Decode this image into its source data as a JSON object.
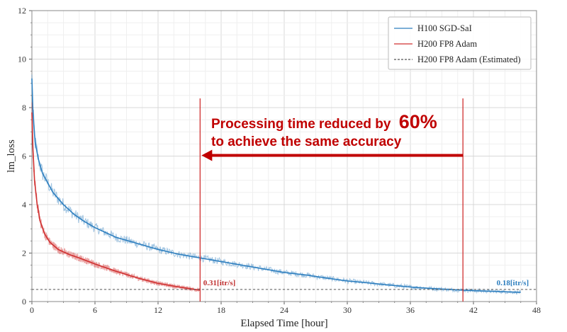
{
  "chart_data": {
    "type": "line",
    "title": "",
    "xlabel": "Elapsed Time [hour]",
    "ylabel": "lm_loss",
    "xlim": [
      0,
      48
    ],
    "ylim": [
      0,
      12
    ],
    "xticks": [
      0,
      6,
      12,
      18,
      24,
      30,
      36,
      42,
      48
    ],
    "yticks": [
      0,
      2,
      4,
      6,
      8,
      10,
      12
    ],
    "grid": true,
    "legend_position": "top-right",
    "series": [
      {
        "name": "H100 SGD-SaI",
        "color": "#2e7fbf",
        "style": "solid-noisy",
        "x": [
          0,
          0.1,
          0.3,
          0.6,
          1,
          1.5,
          2,
          3,
          4,
          5,
          6,
          8,
          10,
          12,
          14,
          16,
          18,
          20,
          22,
          24,
          26,
          28,
          30,
          32,
          34,
          36,
          38,
          40,
          42,
          44,
          46.5
        ],
        "y": [
          9.2,
          7.8,
          6.6,
          5.9,
          5.3,
          4.9,
          4.5,
          4.0,
          3.6,
          3.3,
          3.05,
          2.65,
          2.4,
          2.15,
          1.95,
          1.8,
          1.65,
          1.5,
          1.35,
          1.2,
          1.1,
          0.97,
          0.85,
          0.77,
          0.68,
          0.6,
          0.54,
          0.49,
          0.45,
          0.42,
          0.38
        ]
      },
      {
        "name": "H200 FP8 Adam",
        "color": "#d03030",
        "style": "solid-noisy",
        "x": [
          0,
          0.1,
          0.25,
          0.5,
          0.8,
          1.2,
          1.7,
          2.5,
          3.5,
          4.5,
          6,
          8,
          10,
          12,
          14,
          16
        ],
        "y": [
          7.8,
          6.3,
          5.0,
          4.0,
          3.3,
          2.8,
          2.45,
          2.15,
          1.95,
          1.8,
          1.55,
          1.25,
          0.98,
          0.75,
          0.6,
          0.47
        ]
      },
      {
        "name": "H200 FP8 Adam (Estimated)",
        "color": "#555555",
        "style": "dashed",
        "x": [
          0,
          48
        ],
        "y": [
          0.5,
          0.5
        ]
      }
    ],
    "markers": {
      "vertical_lines": [
        {
          "x": 16,
          "color": "#d03030"
        },
        {
          "x": 41,
          "color": "#d03030"
        }
      ],
      "rate_labels": [
        {
          "text": "0.31[itr/s]",
          "x": 16.3,
          "y": 0.62,
          "color": "#c03030"
        },
        {
          "text": "0.18[itr/s]",
          "x": 44.2,
          "y": 0.62,
          "color": "#2e7fbf"
        }
      ],
      "arrow": {
        "from_x": 41,
        "to_x": 16,
        "y": 6.0,
        "color": "#c00000"
      }
    },
    "annotation": {
      "line1_prefix": "Processing time reduced by",
      "line1_highlight": "60%",
      "line2": "to achieve the same accuracy",
      "color": "#c00000"
    }
  }
}
